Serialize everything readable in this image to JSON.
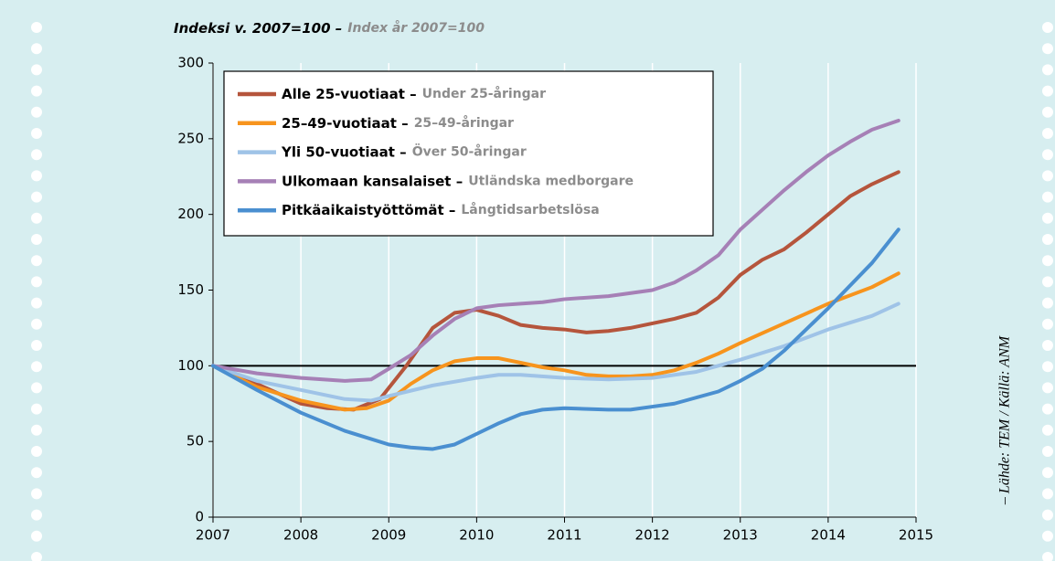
{
  "chart_data": {
    "type": "line",
    "title": "Indeksi v. 2007=100 –",
    "subtitle": "Index år 2007=100",
    "source": "– Lähde: TEM / Källä: ANM",
    "xlim": [
      2007,
      2015
    ],
    "xticks": [
      2007,
      2008,
      2009,
      2010,
      2011,
      2012,
      2013,
      2014,
      2015
    ],
    "ylim": [
      0,
      300
    ],
    "yticks": [
      0,
      50,
      100,
      150,
      200,
      250,
      300
    ],
    "reference_line": 100,
    "grid": "x",
    "series": [
      {
        "name": "Alle 25-vuotiaat –",
        "name_sv": "Under 25-åringar",
        "color": "#b5553c",
        "x": [
          2007,
          2007.5,
          2008,
          2008.3,
          2008.6,
          2008.9,
          2009.2,
          2009.5,
          2009.75,
          2010,
          2010.25,
          2010.5,
          2010.75,
          2011,
          2011.25,
          2011.5,
          2011.75,
          2012,
          2012.25,
          2012.5,
          2012.75,
          2013,
          2013.25,
          2013.5,
          2013.75,
          2014,
          2014.25,
          2014.5,
          2014.8
        ],
        "values": [
          100,
          88,
          75,
          72,
          71,
          78,
          100,
          125,
          135,
          137,
          133,
          127,
          125,
          124,
          122,
          123,
          125,
          128,
          131,
          135,
          145,
          160,
          170,
          177,
          188,
          200,
          212,
          220,
          228
        ]
      },
      {
        "name": "25–49-vuotiaat –",
        "name_sv": "25–49-åringar",
        "color": "#f7941d",
        "x": [
          2007,
          2007.5,
          2008,
          2008.5,
          2008.75,
          2009,
          2009.25,
          2009.5,
          2009.75,
          2010,
          2010.25,
          2010.5,
          2010.75,
          2011,
          2011.25,
          2011.5,
          2011.75,
          2012,
          2012.25,
          2012.5,
          2012.75,
          2013,
          2013.5,
          2014,
          2014.5,
          2014.8
        ],
        "values": [
          100,
          86,
          77,
          71,
          72,
          77,
          88,
          97,
          103,
          105,
          105,
          102,
          99,
          97,
          94,
          93,
          93,
          94,
          97,
          102,
          108,
          115,
          128,
          141,
          152,
          161
        ]
      },
      {
        "name": "Yli 50-vuotiaat –",
        "name_sv": "Över 50-åringar",
        "color": "#9fc3e7",
        "x": [
          2007,
          2007.5,
          2008,
          2008.5,
          2008.8,
          2009,
          2009.5,
          2010,
          2010.25,
          2010.5,
          2011,
          2011.5,
          2012,
          2012.5,
          2013,
          2013.5,
          2014,
          2014.5,
          2014.8
        ],
        "values": [
          100,
          90,
          84,
          78,
          77,
          80,
          87,
          92,
          94,
          94,
          92,
          91,
          92,
          96,
          104,
          113,
          124,
          133,
          141
        ]
      },
      {
        "name": "Ulkomaan kansalaiset –",
        "name_sv": "Utländska medborgare",
        "color": "#a680b6",
        "x": [
          2007,
          2007.5,
          2008,
          2008.5,
          2008.8,
          2009,
          2009.25,
          2009.5,
          2009.75,
          2010,
          2010.25,
          2010.5,
          2010.75,
          2011,
          2011.5,
          2012,
          2012.25,
          2012.5,
          2012.75,
          2013,
          2013.25,
          2013.5,
          2013.75,
          2014,
          2014.25,
          2014.5,
          2014.8
        ],
        "values": [
          100,
          95,
          92,
          90,
          91,
          98,
          107,
          120,
          131,
          138,
          140,
          141,
          142,
          144,
          146,
          150,
          155,
          163,
          173,
          190,
          203,
          216,
          228,
          239,
          248,
          256,
          262
        ]
      },
      {
        "name": "Pitkäaikaistyöttömät –",
        "name_sv": "Långtidsarbetslösa",
        "color": "#4a8fd0",
        "x": [
          2007,
          2007.5,
          2008,
          2008.5,
          2009,
          2009.25,
          2009.5,
          2009.75,
          2010,
          2010.25,
          2010.5,
          2010.75,
          2011,
          2011.5,
          2011.75,
          2012,
          2012.25,
          2012.5,
          2012.75,
          2013,
          2013.25,
          2013.5,
          2013.75,
          2014,
          2014.25,
          2014.5,
          2014.8
        ],
        "values": [
          100,
          84,
          69,
          57,
          48,
          46,
          45,
          48,
          55,
          62,
          68,
          71,
          72,
          71,
          71,
          73,
          75,
          79,
          83,
          90,
          98,
          110,
          124,
          138,
          153,
          168,
          190
        ]
      }
    ]
  }
}
